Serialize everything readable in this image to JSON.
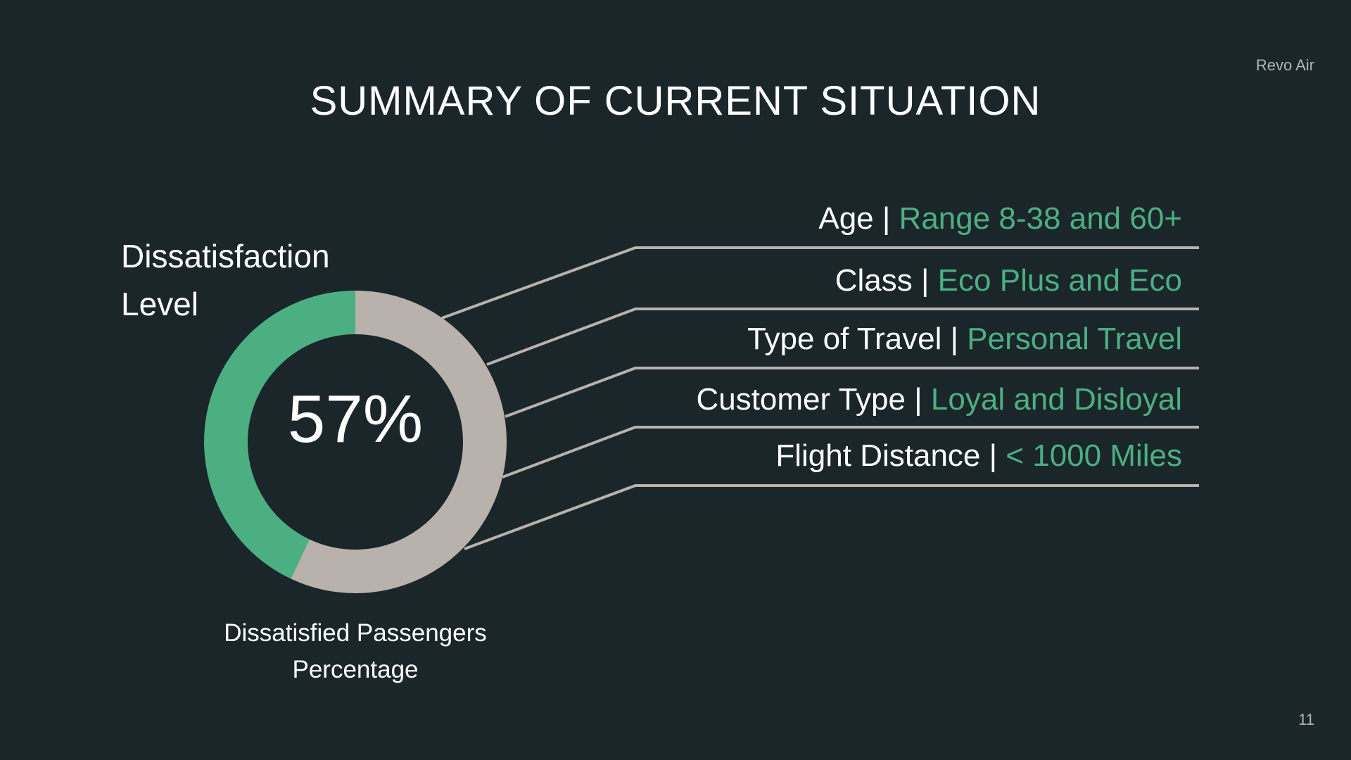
{
  "brand": "Revo Air",
  "title": "SUMMARY OF CURRENT SITUATION",
  "chart_heading": [
    "Dissatisfaction",
    "Level"
  ],
  "chart_data": {
    "type": "pie",
    "variant": "donut",
    "center_label": "57%",
    "slices": [
      {
        "name": "Dissatisfied",
        "value": 57,
        "color": "#b8b1ac"
      },
      {
        "name": "Other",
        "value": 43,
        "color": "#4caf82"
      }
    ],
    "caption": [
      "Dissatisfied Passengers",
      "Percentage"
    ]
  },
  "factors": [
    {
      "label": "Age",
      "separator": "|",
      "value": "Range 8-38 and 60+"
    },
    {
      "label": "Class",
      "separator": "|",
      "value": "Eco Plus and Eco"
    },
    {
      "label": "Type of Travel",
      "separator": "|",
      "value": "Personal Travel"
    },
    {
      "label": "Customer Type",
      "separator": "|",
      "value": "Loyal and Disloyal"
    },
    {
      "label": "Flight Distance",
      "separator": "|",
      "value": "< 1000 Miles"
    }
  ],
  "colors": {
    "background": "#1a2629",
    "accent": "#4caf82",
    "neutral": "#b8b1ac",
    "text": "#ffffff"
  },
  "page_number": "11"
}
